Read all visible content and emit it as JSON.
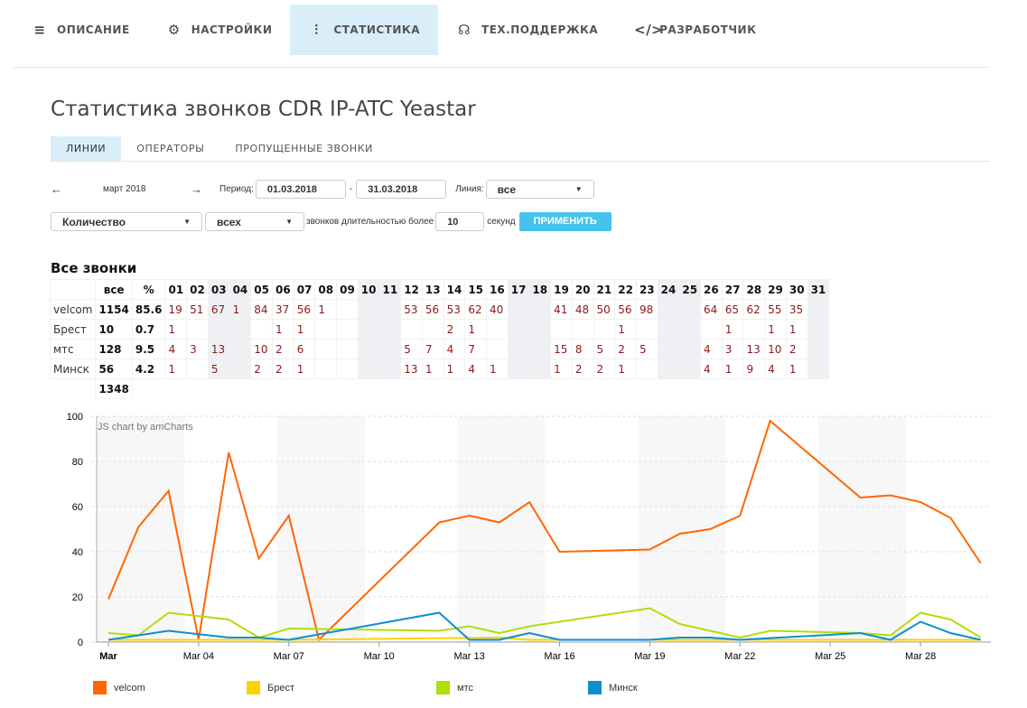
{
  "nav": [
    {
      "label": "ОПИСАНИЕ",
      "icon": "menu-lines-icon",
      "glyph": "≡"
    },
    {
      "label": "НАСТРОЙКИ",
      "icon": "gear-icon",
      "glyph": "⚙"
    },
    {
      "label": "СТАТИСТИКА",
      "icon": "bar-chart-icon",
      "glyph": "⫶"
    },
    {
      "label": "ТЕХ.ПОДДЕРЖКА",
      "icon": "headset-icon",
      "glyph": "☊"
    },
    {
      "label": "РАЗРАБОТЧИК",
      "icon": "code-icon",
      "glyph": "</>"
    }
  ],
  "nav_active": 2,
  "title": "Статистика звонков CDR IP-ATC Yeastar",
  "subtabs": [
    "ЛИНИИ",
    "ОПЕРАТОРЫ",
    "ПРОПУЩЕННЫЕ ЗВОНКИ"
  ],
  "filters": {
    "prev": "←",
    "month": "март 2018",
    "next": "→",
    "period_label": "Период:",
    "date_from": "01.03.2018",
    "dash": "-",
    "date_to": "31.03.2018",
    "line_label": "Линия:",
    "line_value": "все",
    "metric": "Количество",
    "calls": "всех",
    "duration_label": "звонков длительностью более",
    "duration": "10",
    "seconds": "секунд",
    "apply": "ПРИМЕНИТЬ"
  },
  "table": {
    "title": "Все звонки",
    "total_header": "все",
    "pct_header": "%",
    "days": [
      "01",
      "02",
      "03",
      "04",
      "05",
      "06",
      "07",
      "08",
      "09",
      "10",
      "11",
      "12",
      "13",
      "14",
      "15",
      "16",
      "17",
      "18",
      "19",
      "20",
      "21",
      "22",
      "23",
      "24",
      "25",
      "26",
      "27",
      "28",
      "29",
      "30",
      "31"
    ],
    "weekends": [
      "03",
      "04",
      "10",
      "11",
      "17",
      "18",
      "24",
      "25",
      "31"
    ],
    "rows": [
      {
        "name": "velcom",
        "total": "1154",
        "pct": "85.6",
        "values": [
          19,
          51,
          67,
          1,
          84,
          37,
          56,
          1,
          null,
          null,
          null,
          53,
          56,
          53,
          62,
          40,
          null,
          null,
          41,
          48,
          50,
          56,
          98,
          null,
          null,
          64,
          65,
          62,
          55,
          35,
          null
        ]
      },
      {
        "name": "Брест",
        "total": "10",
        "pct": "0.7",
        "values": [
          1,
          null,
          null,
          null,
          null,
          1,
          1,
          null,
          null,
          null,
          null,
          null,
          null,
          2,
          1,
          null,
          null,
          null,
          null,
          null,
          null,
          1,
          null,
          null,
          null,
          null,
          1,
          null,
          1,
          1,
          null
        ]
      },
      {
        "name": "мтс",
        "total": "128",
        "pct": "9.5",
        "values": [
          4,
          3,
          13,
          null,
          10,
          2,
          6,
          null,
          null,
          null,
          null,
          5,
          7,
          4,
          7,
          null,
          null,
          null,
          15,
          8,
          5,
          2,
          5,
          null,
          null,
          4,
          3,
          13,
          10,
          2,
          null
        ]
      },
      {
        "name": "Минск",
        "total": "56",
        "pct": "4.2",
        "values": [
          1,
          null,
          5,
          null,
          2,
          2,
          1,
          null,
          null,
          null,
          null,
          13,
          1,
          1,
          4,
          1,
          null,
          null,
          1,
          2,
          2,
          1,
          null,
          null,
          null,
          4,
          1,
          9,
          4,
          1,
          null
        ]
      }
    ],
    "grand_total": "1348"
  },
  "chart_data": {
    "type": "line",
    "credit": "JS chart by amCharts",
    "ylim": [
      0,
      100
    ],
    "yticks": [
      0,
      20,
      40,
      60,
      80,
      100
    ],
    "xticks": [
      {
        "day": 1,
        "label": "Mar",
        "bold": true
      },
      {
        "day": 4,
        "label": "Mar 04"
      },
      {
        "day": 7,
        "label": "Mar 07"
      },
      {
        "day": 10,
        "label": "Mar 10"
      },
      {
        "day": 13,
        "label": "Mar 13"
      },
      {
        "day": 16,
        "label": "Mar 16"
      },
      {
        "day": 19,
        "label": "Mar 19"
      },
      {
        "day": 22,
        "label": "Mar 22"
      },
      {
        "day": 25,
        "label": "Mar 25"
      },
      {
        "day": 28,
        "label": "Mar 28"
      }
    ],
    "series": [
      {
        "name": "velcom",
        "color": "#ff6600",
        "row": 0
      },
      {
        "name": "Брест",
        "color": "#fcd202",
        "row": 1
      },
      {
        "name": "мтс",
        "color": "#b0de09",
        "row": 2
      },
      {
        "name": "Минск",
        "color": "#0d8ecf",
        "row": 3
      }
    ]
  }
}
